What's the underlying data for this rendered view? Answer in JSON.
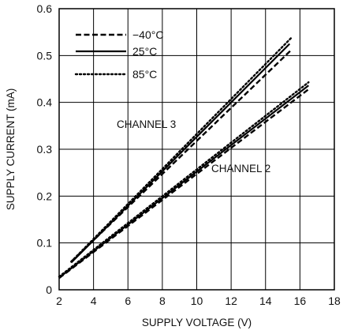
{
  "chart_data": {
    "type": "line",
    "title": "",
    "xlabel": "SUPPLY VOLTAGE (V)",
    "ylabel": "SUPPLY CURRENT (mA)",
    "xlim": [
      2,
      18
    ],
    "ylim": [
      0,
      0.6
    ],
    "xticks": [
      2,
      4,
      6,
      8,
      10,
      12,
      14,
      16,
      18
    ],
    "xtick_labels": [
      "2",
      "4",
      "6",
      "8",
      "10",
      "12",
      "14",
      "16",
      "18"
    ],
    "yticks": [
      0,
      0.1,
      0.2,
      0.3,
      0.4,
      0.5,
      0.6
    ],
    "ytick_labels": [
      "0",
      "0.1",
      "0.2",
      "0.3",
      "0.4",
      "0.5",
      "0.6"
    ],
    "grid": true,
    "legend_position": "top-left",
    "legend": [
      {
        "label": "−40°C",
        "style": "dashed"
      },
      {
        "label": "25°C",
        "style": "solid"
      },
      {
        "label": "85°C",
        "style": "dotted"
      }
    ],
    "annotations": [
      {
        "text": "CHANNEL 3"
      },
      {
        "text": "CHANNEL 2"
      }
    ],
    "series": [
      {
        "group": "CHANNEL 3",
        "style": "dashed",
        "x": [
          2.7,
          15.5
        ],
        "y": [
          0.06,
          0.512
        ]
      },
      {
        "group": "CHANNEL 3",
        "style": "solid",
        "x": [
          2.7,
          15.4
        ],
        "y": [
          0.058,
          0.525
        ]
      },
      {
        "group": "CHANNEL 3",
        "style": "dotted",
        "x": [
          2.7,
          15.5
        ],
        "y": [
          0.06,
          0.538
        ]
      },
      {
        "group": "CHANNEL 2",
        "style": "dashed",
        "x": [
          2.0,
          16.5
        ],
        "y": [
          0.025,
          0.428
        ]
      },
      {
        "group": "CHANNEL 2",
        "style": "solid",
        "x": [
          2.0,
          16.5
        ],
        "y": [
          0.026,
          0.436
        ]
      },
      {
        "group": "CHANNEL 2",
        "style": "dotted",
        "x": [
          2.0,
          16.5
        ],
        "y": [
          0.028,
          0.443
        ]
      }
    ]
  }
}
